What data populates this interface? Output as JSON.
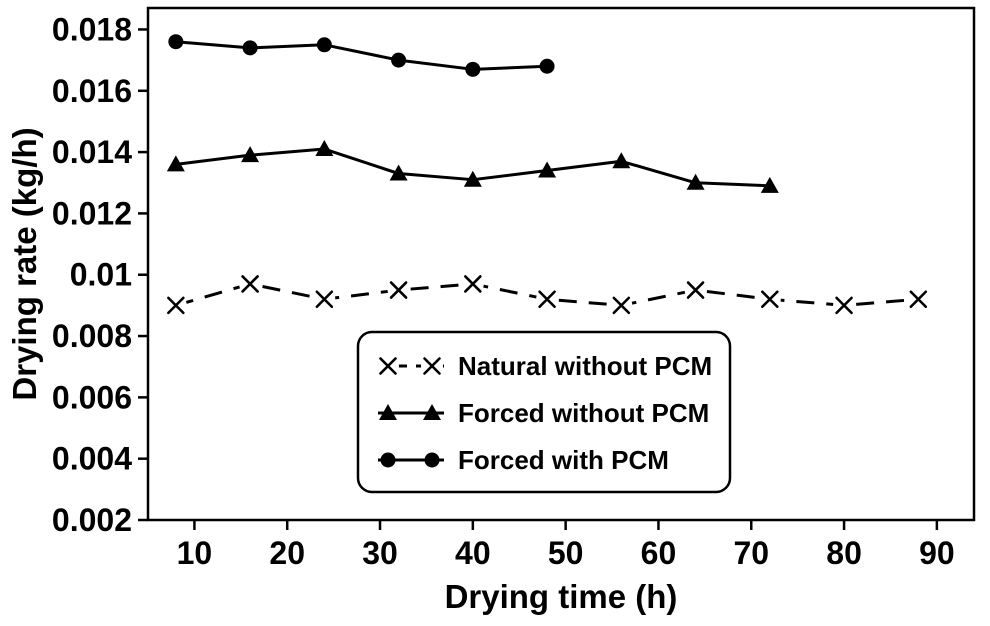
{
  "figure": {
    "background": "#ffffff",
    "ink": "#000000"
  },
  "chart_data": {
    "type": "line",
    "title": "",
    "xlabel": "Drying time (h)",
    "ylabel": "Drying rate (kg/h)",
    "xlim": [
      5,
      94
    ],
    "ylim": [
      0.002,
      0.0187
    ],
    "xticks": [
      10,
      20,
      30,
      40,
      50,
      60,
      70,
      80,
      90
    ],
    "yticks": [
      0.002,
      0.004,
      0.006,
      0.008,
      0.01,
      0.012,
      0.014,
      0.016,
      0.018
    ],
    "ytick_labels": [
      "0.002",
      "0.004",
      "0.006",
      "0.008",
      "0.01",
      "0.012",
      "0.014",
      "0.016",
      "0.018"
    ],
    "grid": false,
    "legend_position": "inside-bottom-center",
    "series": [
      {
        "name": "Natural without PCM",
        "marker": "x",
        "line_style": "dashed",
        "x": [
          8,
          16,
          24,
          32,
          40,
          48,
          56,
          64,
          72,
          80,
          88
        ],
        "y": [
          0.009,
          0.0097,
          0.0092,
          0.0095,
          0.0097,
          0.0092,
          0.009,
          0.0095,
          0.0092,
          0.009,
          0.0092
        ]
      },
      {
        "name": "Forced without PCM",
        "marker": "triangle",
        "line_style": "solid",
        "x": [
          8,
          16,
          24,
          32,
          40,
          48,
          56,
          64,
          72
        ],
        "y": [
          0.0136,
          0.0139,
          0.0141,
          0.0133,
          0.0131,
          0.0134,
          0.0137,
          0.013,
          0.0129
        ]
      },
      {
        "name": "Forced with PCM",
        "marker": "circle",
        "line_style": "solid",
        "x": [
          8,
          16,
          24,
          32,
          40,
          48
        ],
        "y": [
          0.0176,
          0.0174,
          0.0175,
          0.017,
          0.0167,
          0.0168
        ]
      }
    ]
  }
}
